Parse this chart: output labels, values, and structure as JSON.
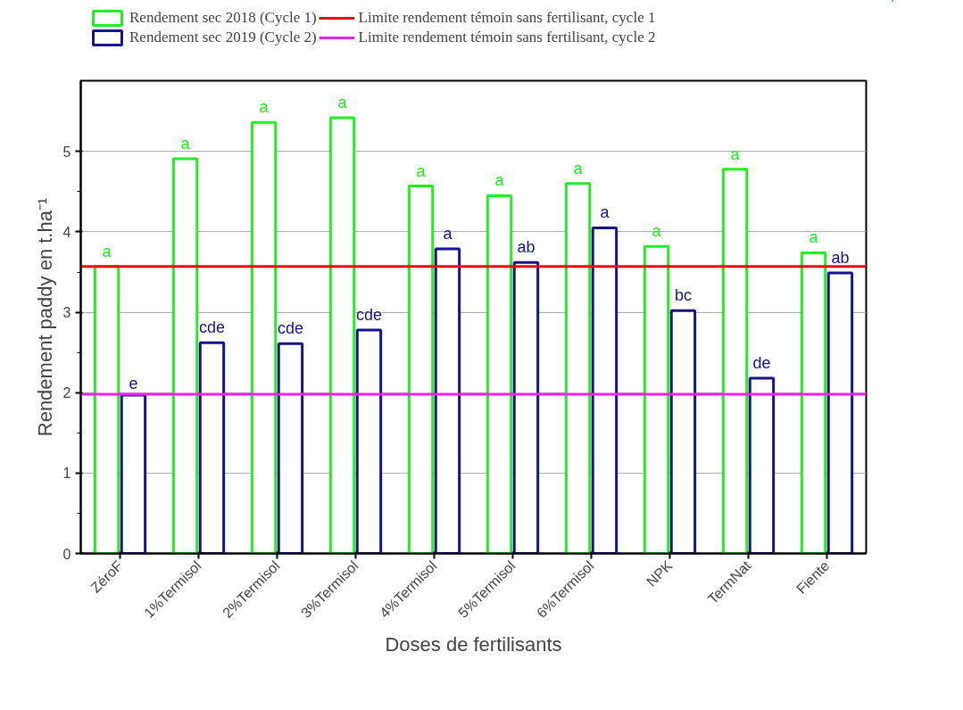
{
  "chart_data": {
    "type": "bar",
    "xlabel": "Doses de fertilisants",
    "ylabel": "Rendement paddy en t.ha⁻¹",
    "categories": [
      "ZéroF",
      "1%Termisol",
      "2%Termisol",
      "3%Termisol",
      "4%Termisol",
      "5%Termisol",
      "6%Termisol",
      "NPK",
      "TermNat",
      "Fiente"
    ],
    "series": [
      {
        "name": "Rendement sec 2018 (Cycle 1)",
        "color": "#22ee22",
        "values": [
          3.57,
          4.91,
          5.36,
          5.42,
          4.57,
          4.45,
          4.6,
          3.82,
          4.78,
          3.74
        ],
        "value_labels": [
          "a",
          "a",
          "a",
          "a",
          "a",
          "a",
          "a",
          "a",
          "a",
          "a"
        ]
      },
      {
        "name": "Rendement sec 2019 (Cycle 2)",
        "color": "#141485",
        "values": [
          1.97,
          2.62,
          2.61,
          2.78,
          3.79,
          3.62,
          4.05,
          3.02,
          2.18,
          3.49
        ],
        "value_labels": [
          "e",
          "cde",
          "cde",
          "cde",
          "a",
          "ab",
          "a",
          "bc",
          "de",
          "ab"
        ]
      }
    ],
    "ref_lines": [
      {
        "axis": "y",
        "value": 3.57,
        "label": "Limite rendement témoin sans fertilisant, cycle 1",
        "color": "#e01010"
      },
      {
        "axis": "y",
        "value": 1.98,
        "label": "Limite rendement témoin sans fertilisant, cycle 2",
        "color": "#ee22ee"
      }
    ],
    "ylim": [
      0,
      5.88
    ],
    "yticks": [
      0,
      1,
      2,
      3,
      4,
      5
    ],
    "grid": "y",
    "legend": "top"
  }
}
